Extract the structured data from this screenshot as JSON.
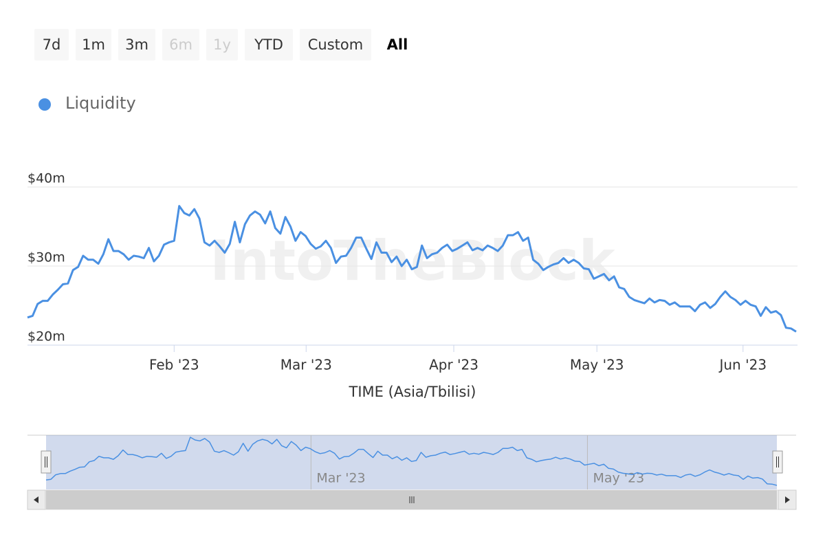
{
  "range_selector": {
    "buttons": [
      {
        "label": "7d",
        "state": "normal"
      },
      {
        "label": "1m",
        "state": "normal"
      },
      {
        "label": "3m",
        "state": "normal"
      },
      {
        "label": "6m",
        "state": "disabled"
      },
      {
        "label": "1y",
        "state": "disabled"
      },
      {
        "label": "YTD",
        "state": "normal"
      },
      {
        "label": "Custom",
        "state": "normal"
      },
      {
        "label": "All",
        "state": "selected"
      }
    ]
  },
  "chart_data": {
    "type": "line",
    "watermark": "IntoTheBlock",
    "x_label": "TIME (Asia/Tbilisi)",
    "series": [
      {
        "name": "Liquidity",
        "color": "#4a90e2",
        "values": [
          23.5,
          23.7,
          25.2,
          25.6,
          25.6,
          26.4,
          27,
          27.7,
          27.8,
          29.5,
          29.9,
          31.3,
          30.8,
          30.8,
          30.3,
          31.5,
          33.4,
          31.9,
          31.9,
          31.5,
          30.8,
          31.3,
          31.2,
          31,
          32.3,
          30.6,
          31.3,
          32.7,
          33,
          33.2,
          37.6,
          36.7,
          36.4,
          37.2,
          36,
          33,
          32.6,
          33.2,
          32.5,
          31.7,
          32.8,
          35.6,
          33,
          35.3,
          36.4,
          36.9,
          36.5,
          35.4,
          36.9,
          34.8,
          34.1,
          36.2,
          35,
          33.2,
          34.3,
          33.8,
          32.8,
          32.2,
          32.5,
          33.2,
          32.3,
          30.4,
          31.2,
          31.3,
          32.3,
          33.6,
          33.6,
          32.2,
          30.9,
          33,
          31.7,
          31.7,
          30.5,
          31.2,
          30,
          30.8,
          29.6,
          29.9,
          32.6,
          31,
          31.5,
          31.7,
          32.3,
          32.7,
          31.9,
          32.2,
          32.6,
          33,
          32,
          32.3,
          32,
          32.6,
          32.3,
          31.9,
          32.6,
          33.9,
          33.9,
          34.3,
          33.2,
          33.6,
          30.8,
          30.3,
          29.5,
          29.9,
          30.2,
          30.4,
          31,
          30.4,
          30.8,
          30.4,
          29.7,
          29.6,
          28.4,
          28.7,
          29,
          28.2,
          28.7,
          27.3,
          27.1,
          26.1,
          25.7,
          25.5,
          25.3,
          25.9,
          25.4,
          25.7,
          25.6,
          25.1,
          25.4,
          24.9,
          24.9,
          24.9,
          24.3,
          25.1,
          25.4,
          24.7,
          25.2,
          26.1,
          26.8,
          26.1,
          25.7,
          25.1,
          25.6,
          25.1,
          24.9,
          23.7,
          24.8,
          24.1,
          24.3,
          23.8,
          22.2,
          22.1,
          21.7
        ]
      }
    ],
    "xlim": [
      0,
      152
    ],
    "xticks": [
      {
        "value": 29,
        "label": "Feb '23"
      },
      {
        "value": 55.1,
        "label": "Mar '23"
      },
      {
        "value": 84.3,
        "label": "Apr '23"
      },
      {
        "value": 112.6,
        "label": "May '23"
      },
      {
        "value": 141.5,
        "label": "Jun '23"
      }
    ],
    "navigator_xticks": [
      1,
      3
    ],
    "ylim": [
      20,
      40
    ],
    "yticks": [
      {
        "value": 20,
        "label": "$20m"
      },
      {
        "value": 30,
        "label": "$30m"
      },
      {
        "value": 40,
        "label": "$40m"
      }
    ],
    "grid": true
  }
}
